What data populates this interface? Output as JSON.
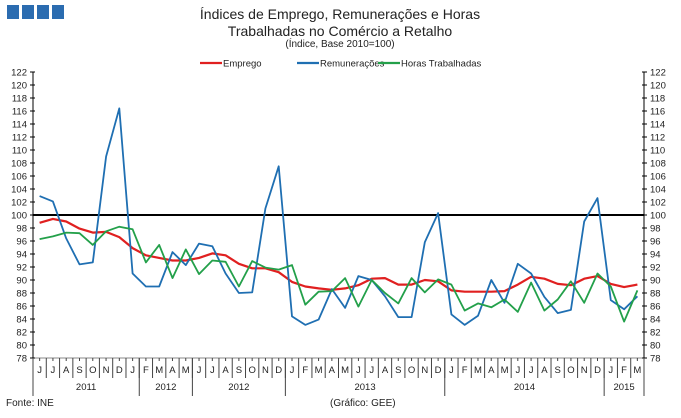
{
  "header": {
    "title": "Índices de Emprego, Remunerações e Horas Trabalhadas no Comércio a Retalho",
    "subtitle": "(Índice, Base 2010=100)"
  },
  "footer": {
    "source": "Fonte: INE",
    "credit": "(Gráfico: GEE)"
  },
  "chart_data": {
    "type": "line",
    "title": "Índices de Emprego, Remunerações e Horas Trabalhadas no Comércio a Retalho",
    "subtitle": "(Índice, Base 2010=100)",
    "ylim": [
      78,
      122
    ],
    "yticks": [
      78,
      80,
      82,
      84,
      86,
      88,
      90,
      92,
      94,
      96,
      98,
      100,
      102,
      104,
      106,
      108,
      110,
      112,
      114,
      116,
      118,
      120,
      122
    ],
    "reference_line": 100,
    "legend_position": "top",
    "months": [
      "J",
      "J",
      "A",
      "S",
      "O",
      "N",
      "D",
      "J",
      "F",
      "M",
      "A",
      "M",
      "J",
      "J",
      "A",
      "S",
      "O",
      "N",
      "D",
      "J",
      "F",
      "M",
      "A",
      "M",
      "J",
      "J",
      "A",
      "S",
      "O",
      "N",
      "D",
      "J",
      "F",
      "M",
      "A",
      "M",
      "J",
      "J",
      "A",
      "S",
      "O",
      "N",
      "D",
      "J",
      "F",
      "M"
    ],
    "year_groups": [
      {
        "label": "2011",
        "count": 8
      },
      {
        "label": "2012",
        "count": 4
      },
      {
        "label": "2012",
        "count": 7
      },
      {
        "label": "2013",
        "count": 12
      },
      {
        "label": "2014",
        "count": 12
      },
      {
        "label": "2015",
        "count": 3
      }
    ],
    "series": [
      {
        "name": "Emprego",
        "color": "#e02020",
        "values": [
          98.8,
          99.4,
          99.0,
          97.9,
          97.3,
          97.4,
          96.6,
          94.9,
          93.8,
          93.4,
          93.0,
          93.0,
          93.4,
          94.1,
          93.8,
          92.5,
          91.8,
          91.8,
          91.2,
          89.7,
          89.0,
          88.7,
          88.5,
          88.7,
          89.2,
          90.2,
          90.3,
          89.3,
          89.3,
          90.0,
          89.8,
          88.4,
          88.2,
          88.2,
          88.2,
          88.3,
          89.3,
          90.5,
          90.2,
          89.4,
          89.2,
          90.2,
          90.6,
          89.4,
          88.9,
          89.3
        ]
      },
      {
        "name": "Remunerações",
        "color": "#1f6fb2",
        "values": [
          102.9,
          102.1,
          96.4,
          92.4,
          92.7,
          109.0,
          116.4,
          91.0,
          89.0,
          89.0,
          94.3,
          92.3,
          95.6,
          95.2,
          91.0,
          88.0,
          88.1,
          101.0,
          107.5,
          84.4,
          83.1,
          83.9,
          88.6,
          85.7,
          90.6,
          90.0,
          87.5,
          84.3,
          84.3,
          95.8,
          100.3,
          84.7,
          83.1,
          84.5,
          90.0,
          86.5,
          92.5,
          91.0,
          87.4,
          84.9,
          85.4,
          99.0,
          102.6,
          86.9,
          85.5,
          87.5
        ]
      },
      {
        "name": "Horas Trabalhadas",
        "color": "#23a04a",
        "values": [
          96.3,
          96.7,
          97.3,
          97.2,
          95.4,
          97.5,
          98.2,
          97.8,
          92.7,
          95.4,
          90.3,
          94.7,
          90.9,
          93.0,
          92.8,
          89.0,
          92.9,
          91.9,
          91.6,
          92.3,
          86.2,
          88.2,
          88.3,
          90.3,
          85.9,
          90.0,
          88.0,
          86.4,
          90.3,
          88.1,
          90.1,
          89.3,
          85.3,
          86.4,
          85.8,
          87.0,
          85.1,
          89.6,
          85.3,
          87.0,
          89.8,
          86.5,
          91.0,
          89.0,
          83.6,
          88.4
        ]
      }
    ]
  }
}
